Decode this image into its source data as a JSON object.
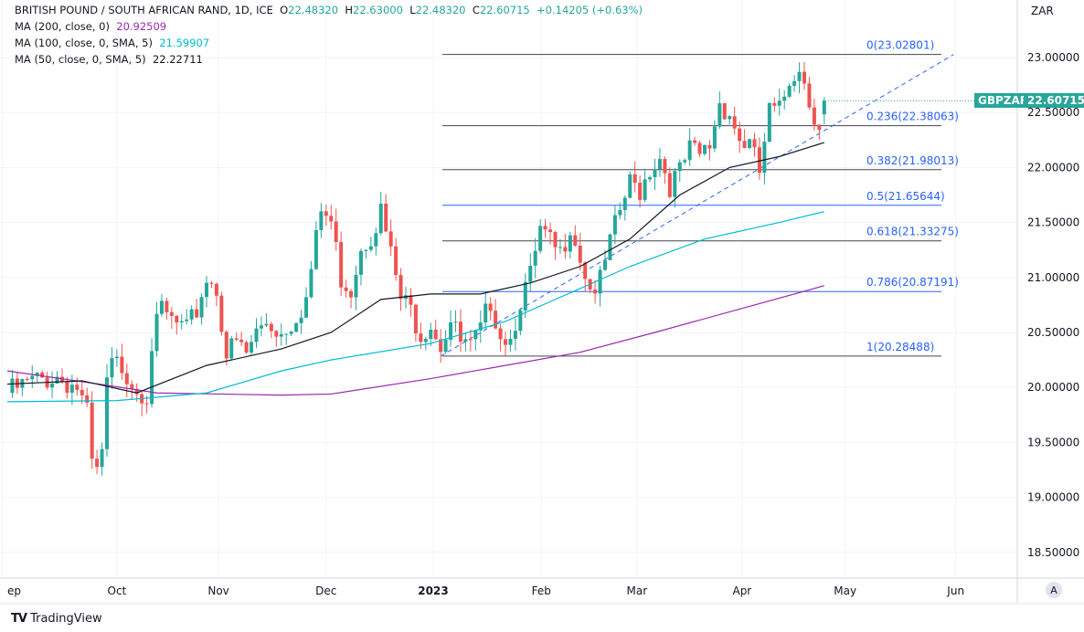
{
  "header": {
    "title": "BRITISH POUND / SOUTH AFRICAN RAND, 1D, ICE",
    "o_label": "O",
    "o": "22.48320",
    "h_label": "H",
    "h": "22.63000",
    "l_label": "L",
    "l": "22.48320",
    "c_label": "C",
    "c": "22.60715",
    "change": "+0.14205 (+0.63%)"
  },
  "indicators": [
    {
      "label": "MA (200, close, 0)",
      "value": "20.92509",
      "color": "#9c27b0"
    },
    {
      "label": "MA (100, close, 0, SMA, 5)",
      "value": "21.59907",
      "color": "#00bcd4"
    },
    {
      "label": "MA (50, close, 0, SMA, 5)",
      "value": "22.22711",
      "color": "#131722"
    }
  ],
  "price_tag": {
    "symbol": "GBPZAR",
    "price": "22.60715"
  },
  "auto_button": "A",
  "branding": "TradingView",
  "chart_data": {
    "type": "candlestick",
    "currency": "ZAR",
    "ylim": [
      18.3,
      23.5
    ],
    "y_ticks": [
      "23.00000",
      "22.50000",
      "22.00000",
      "21.50000",
      "21.00000",
      "20.50000",
      "20.00000",
      "19.50000",
      "19.00000",
      "18.50000"
    ],
    "y_tick_values": [
      23,
      22.5,
      22,
      21.5,
      21,
      20.5,
      20,
      19.5,
      19,
      18.5
    ],
    "x_ticks": [
      {
        "label": "ep",
        "idx": -1
      },
      {
        "label": "Oct",
        "idx": 22
      },
      {
        "label": "Nov",
        "idx": 42.4
      },
      {
        "label": "Dec",
        "idx": 64
      },
      {
        "label": "2023",
        "idx": 85.5
      },
      {
        "label": "Feb",
        "idx": 107.2
      },
      {
        "label": "Mar",
        "idx": 126.4
      },
      {
        "label": "Apr",
        "idx": 147.5
      },
      {
        "label": "May",
        "idx": 168.2
      },
      {
        "label": "Jun",
        "idx": 190.4
      }
    ],
    "close_anchors": [
      [
        0,
        19.95
      ],
      [
        5,
        20.05
      ],
      [
        10,
        20.1
      ],
      [
        14,
        20.0
      ],
      [
        16,
        19.75
      ],
      [
        17,
        19.3
      ],
      [
        18,
        19.2
      ],
      [
        19,
        19.4
      ],
      [
        20,
        20.0
      ],
      [
        21,
        20.2
      ],
      [
        23,
        20.2
      ],
      [
        26,
        20.0
      ],
      [
        28,
        19.95
      ],
      [
        29,
        20.4
      ],
      [
        31,
        20.7
      ],
      [
        33,
        20.6
      ],
      [
        36,
        20.5
      ],
      [
        38,
        20.7
      ],
      [
        40,
        21.0
      ],
      [
        42,
        20.9
      ],
      [
        44,
        20.3
      ],
      [
        46,
        20.4
      ],
      [
        48,
        20.3
      ],
      [
        50,
        20.5
      ],
      [
        52,
        20.6
      ],
      [
        55,
        20.5
      ],
      [
        57,
        20.6
      ],
      [
        60,
        20.8
      ],
      [
        63,
        21.6
      ],
      [
        65,
        21.5
      ],
      [
        67,
        21.0
      ],
      [
        69,
        20.9
      ],
      [
        71,
        21.3
      ],
      [
        73,
        21.4
      ],
      [
        75,
        21.6
      ],
      [
        77,
        21.2
      ],
      [
        79,
        20.8
      ],
      [
        81,
        20.7
      ],
      [
        83,
        20.5
      ],
      [
        85,
        20.6
      ],
      [
        87,
        20.4
      ],
      [
        89,
        20.6
      ],
      [
        91,
        20.4
      ],
      [
        93,
        20.35
      ],
      [
        95,
        20.5
      ],
      [
        97,
        20.8
      ],
      [
        99,
        20.5
      ],
      [
        101,
        20.45
      ],
      [
        103,
        20.8
      ],
      [
        105,
        21.0
      ],
      [
        107,
        21.4
      ],
      [
        109,
        21.3
      ],
      [
        111,
        21.2
      ],
      [
        113,
        21.5
      ],
      [
        115,
        21.2
      ],
      [
        117,
        20.9
      ],
      [
        119,
        20.95
      ],
      [
        121,
        21.3
      ],
      [
        123,
        21.6
      ],
      [
        125,
        21.85
      ],
      [
        127,
        21.8
      ],
      [
        129,
        22.0
      ],
      [
        131,
        22.1
      ],
      [
        133,
        21.85
      ],
      [
        135,
        21.95
      ],
      [
        137,
        22.15
      ],
      [
        139,
        22.1
      ],
      [
        141,
        22.2
      ],
      [
        143,
        22.6
      ],
      [
        145,
        22.5
      ],
      [
        147,
        22.25
      ],
      [
        149,
        22.2
      ],
      [
        151,
        21.95
      ],
      [
        153,
        22.5
      ],
      [
        155,
        22.5
      ],
      [
        157,
        22.8
      ],
      [
        159,
        22.95
      ],
      [
        161,
        22.6
      ],
      [
        163,
        22.4
      ],
      [
        164,
        22.607
      ]
    ],
    "ma_series": [
      {
        "name": "MA200",
        "color": "#9c27b0",
        "points": [
          [
            0,
            20.15
          ],
          [
            20,
            20.02
          ],
          [
            30,
            19.95
          ],
          [
            55,
            19.93
          ],
          [
            65,
            19.94
          ],
          [
            85,
            20.08
          ],
          [
            100,
            20.2
          ],
          [
            115,
            20.32
          ],
          [
            130,
            20.5
          ],
          [
            150,
            20.75
          ],
          [
            164,
            20.925
          ]
        ]
      },
      {
        "name": "MA100",
        "color": "#00bcd4",
        "points": [
          [
            0,
            19.87
          ],
          [
            22,
            19.88
          ],
          [
            40,
            19.95
          ],
          [
            55,
            20.15
          ],
          [
            65,
            20.25
          ],
          [
            85,
            20.4
          ],
          [
            100,
            20.6
          ],
          [
            110,
            20.8
          ],
          [
            125,
            21.1
          ],
          [
            140,
            21.35
          ],
          [
            155,
            21.5
          ],
          [
            164,
            21.599
          ]
        ]
      },
      {
        "name": "MA50",
        "color": "#131722",
        "points": [
          [
            0,
            20.03
          ],
          [
            15,
            20.06
          ],
          [
            26,
            19.95
          ],
          [
            40,
            20.2
          ],
          [
            55,
            20.35
          ],
          [
            65,
            20.5
          ],
          [
            75,
            20.8
          ],
          [
            85,
            20.85
          ],
          [
            95,
            20.85
          ],
          [
            105,
            20.95
          ],
          [
            115,
            21.1
          ],
          [
            125,
            21.35
          ],
          [
            135,
            21.75
          ],
          [
            145,
            22.0
          ],
          [
            155,
            22.1
          ],
          [
            164,
            22.227
          ]
        ]
      }
    ],
    "trendline": {
      "from": [
        87,
        20.285
      ],
      "to": [
        190,
        23.028
      ],
      "color": "#2962ff",
      "style": "dashed"
    },
    "fib_levels": [
      {
        "label": "0(23.02801)",
        "value": 23.02801
      },
      {
        "label": "0.236(22.38063)",
        "value": 22.38063
      },
      {
        "label": "0.382(21.98013)",
        "value": 21.98013
      },
      {
        "label": "0.5(21.65644)",
        "value": 21.65644
      },
      {
        "label": "0.618(21.33275)",
        "value": 21.33275
      },
      {
        "label": "0.786(20.87191)",
        "value": 20.87191
      },
      {
        "label": "1(20.28488)",
        "value": 20.28488
      }
    ],
    "colors": {
      "up": "#26a69a",
      "down": "#ef5350"
    }
  }
}
